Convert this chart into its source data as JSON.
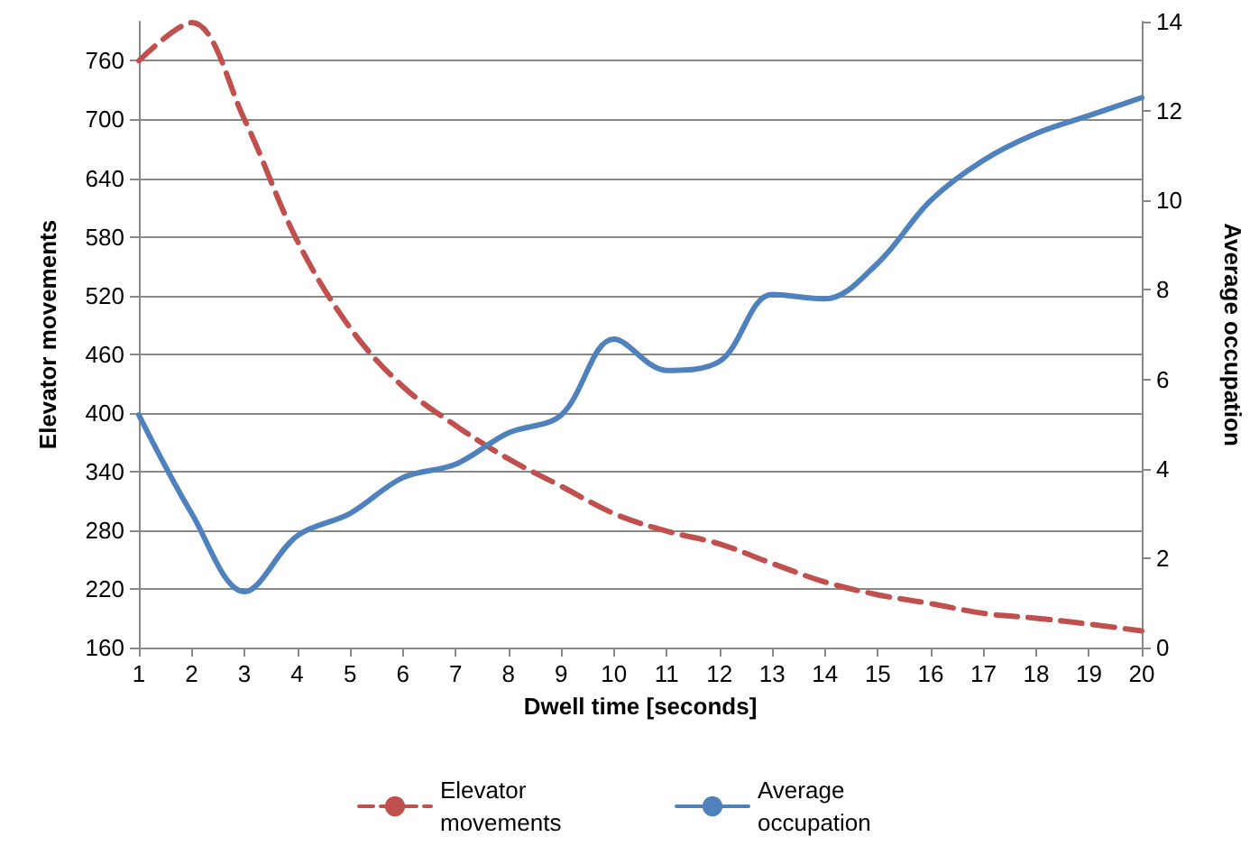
{
  "chart_data": {
    "type": "line",
    "xlabel": "Dwell time [seconds]",
    "ylabel": "Elevator movements",
    "y2label": "Average occupation",
    "categories": [
      "1",
      "2",
      "3",
      "4",
      "5",
      "6",
      "7",
      "8",
      "9",
      "10",
      "11",
      "12",
      "13",
      "14",
      "15",
      "16",
      "17",
      "18",
      "19",
      "20"
    ],
    "series": [
      {
        "name": "Elevator movements",
        "color": "#c0504d",
        "line_style": "dashed",
        "values": [
          760,
          799,
          700,
          576,
          487,
          427,
          387,
          353,
          325,
          297,
          279,
          266,
          246,
          227,
          214,
          205,
          195,
          190,
          184,
          177
        ]
      },
      {
        "name": "Average occupation",
        "color": "#4f81bd",
        "line_style": "solid",
        "axis": "y2",
        "values": [
          5.2,
          3.0,
          1.25,
          2.5,
          3.0,
          3.8,
          4.1,
          4.8,
          5.2,
          6.9,
          6.2,
          6.4,
          7.9,
          7.8,
          8.6,
          10.0,
          10.9,
          11.5,
          11.9,
          12.3
        ]
      }
    ],
    "ylim": [
      160,
      800
    ],
    "yticks": [
      160,
      220,
      280,
      340,
      400,
      460,
      520,
      580,
      640,
      700,
      760
    ],
    "y2lim": [
      0,
      14
    ],
    "y2ticks": [
      0,
      2,
      4,
      6,
      8,
      10,
      12,
      14
    ],
    "grid": "y",
    "legend": "bottom",
    "marker": "none"
  }
}
